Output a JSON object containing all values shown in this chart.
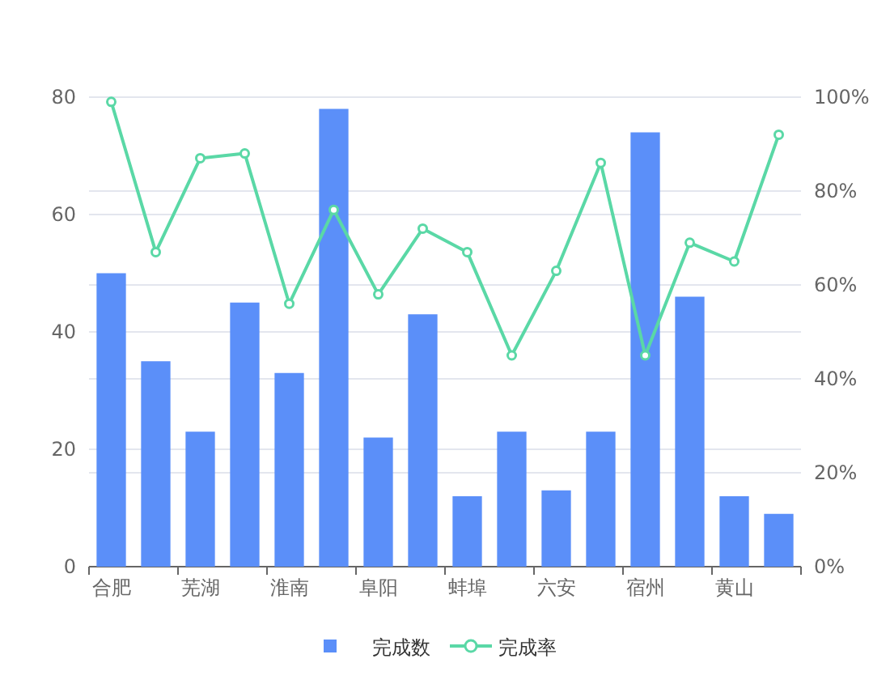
{
  "chart_data": {
    "type": "bar",
    "categories": [
      "合肥",
      null,
      "芜湖",
      null,
      "淮南",
      null,
      "阜阳",
      null,
      "蚌埠",
      null,
      "六安",
      null,
      "宿州",
      null,
      "黄山",
      null
    ],
    "series": [
      {
        "name": "完成数",
        "color": "#5b8ff9",
        "values": [
          50,
          35,
          23,
          45,
          33,
          78,
          22,
          43,
          12,
          23,
          13,
          23,
          74,
          46,
          12,
          9
        ]
      },
      {
        "name": "完成率",
        "type": "line",
        "axis": "y2",
        "color": "#5ad8a6",
        "marker": "circle",
        "values": [
          99,
          67,
          87,
          88,
          56,
          76,
          58,
          72,
          67,
          45,
          63,
          86,
          45,
          69,
          65,
          92
        ]
      }
    ],
    "ylim": [
      0,
      80
    ],
    "yticks": [
      0,
      20,
      40,
      60,
      80
    ],
    "y2lim": [
      0,
      100
    ],
    "y2ticks": [
      {
        "value": 0,
        "label": "0%"
      },
      {
        "value": 20,
        "label": "20%"
      },
      {
        "value": 40,
        "label": "40%"
      },
      {
        "value": 60,
        "label": "60%"
      },
      {
        "value": 80,
        "label": "80%"
      },
      {
        "value": 100,
        "label": "100%"
      }
    ],
    "grid": true,
    "legend": "bottom"
  }
}
